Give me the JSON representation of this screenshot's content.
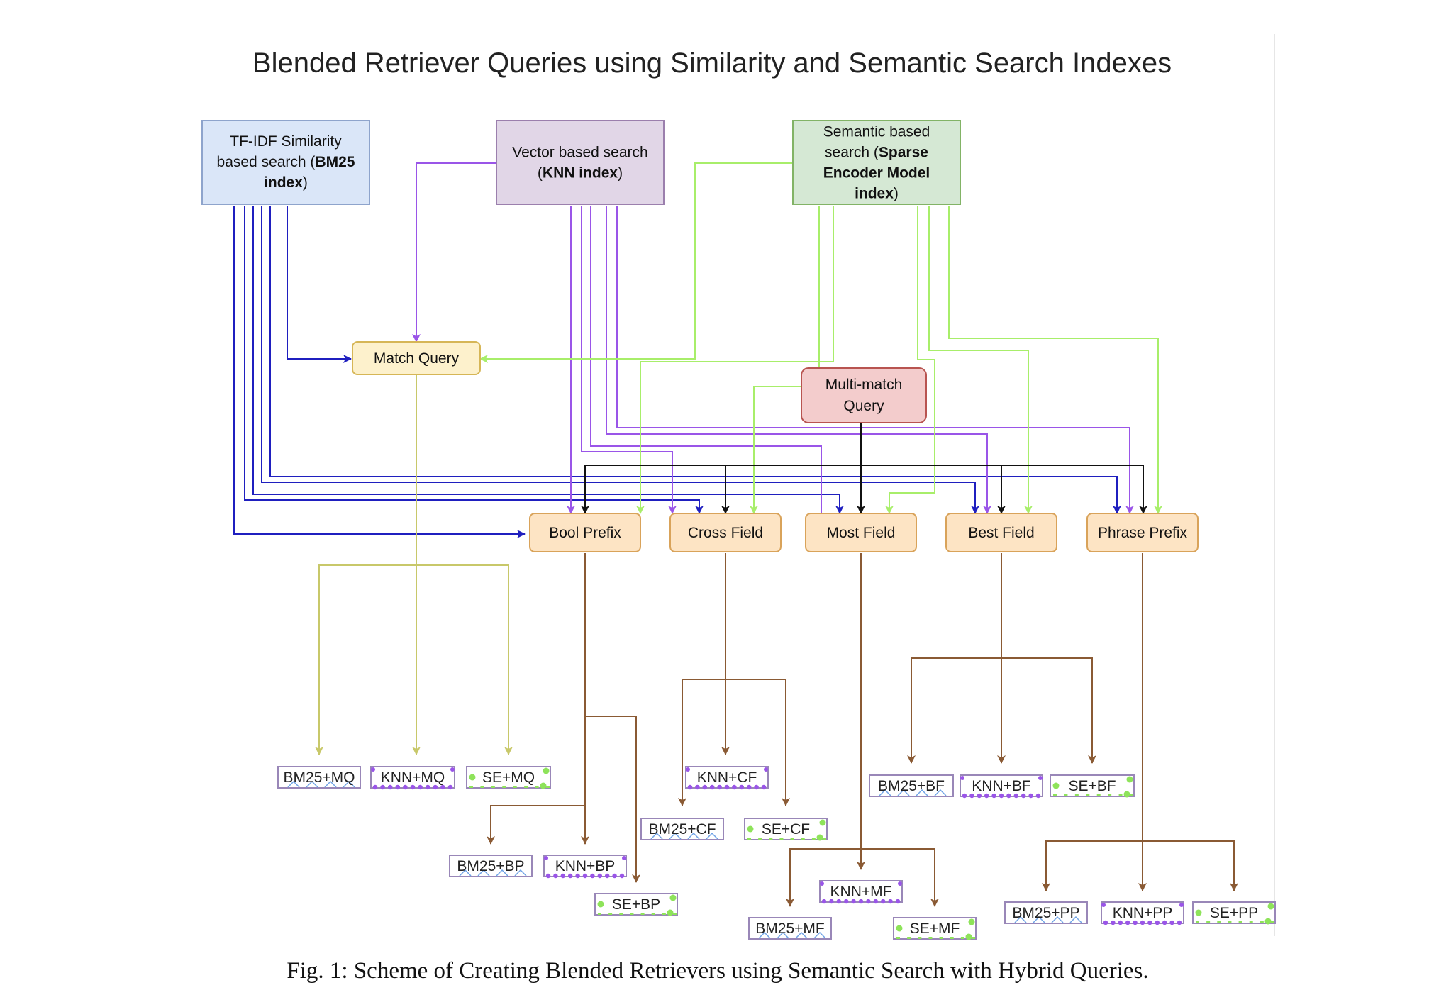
{
  "title": "Blended Retriever Queries using Similarity and Semantic Search Indexes",
  "caption": "Fig. 1: Scheme of Creating Blended Retrievers using Semantic Search with Hybrid Queries.",
  "colors": {
    "bm25_edge": "#1f1fbf",
    "knn_edge": "#9a55e8",
    "se_edge": "#a8ee6a",
    "multimatch_edge": "#111111",
    "query_edge": "#8a5a34",
    "match_edge": "#c8c86a",
    "bm25_fill": "#dae6f8",
    "bm25_stroke": "#8ea4cc",
    "knn_fill": "#e1d6e7",
    "knn_stroke": "#9b7fad",
    "se_fill": "#d5e8d4",
    "se_stroke": "#82b366",
    "query_fill": "#fde4c4",
    "query_stroke": "#d9a35a",
    "match_fill": "#fdf1cc",
    "match_stroke": "#d6b656",
    "multimatch_fill": "#f3cccc",
    "multimatch_stroke": "#b85450",
    "retriever_stroke": "#9987b8"
  },
  "sources": {
    "bm25": {
      "lines": [
        [
          {
            "t": "TF-IDF Similarity"
          }
        ],
        [
          {
            "t": "based search ("
          },
          {
            "t": "BM25",
            "b": true
          }
        ],
        [
          {
            "t": "index",
            "b": true
          },
          {
            "t": ")"
          }
        ]
      ]
    },
    "knn": {
      "lines": [
        [
          {
            "t": "Vector based search"
          }
        ],
        [
          {
            "t": "("
          },
          {
            "t": "KNN index",
            "b": true
          },
          {
            "t": ")"
          }
        ]
      ]
    },
    "se": {
      "lines": [
        [
          {
            "t": "Semantic based"
          }
        ],
        [
          {
            "t": "search ("
          },
          {
            "t": "Sparse",
            "b": true
          }
        ],
        [
          {
            "t": "Encoder Model",
            "b": true
          }
        ],
        [
          {
            "t": "index",
            "b": true
          },
          {
            "t": ")"
          }
        ]
      ]
    }
  },
  "match_query": "Match Query",
  "multimatch": [
    "Multi-match",
    "Query"
  ],
  "queries": [
    "Bool Prefix",
    "Cross Field",
    "Most Field",
    "Best Field",
    "Phrase Prefix"
  ],
  "retrievers": {
    "MQ": [
      "BM25+MQ",
      "KNN+MQ",
      "SE+MQ"
    ],
    "BP": [
      "BM25+BP",
      "KNN+BP",
      "SE+BP"
    ],
    "CF": [
      "BM25+CF",
      "KNN+CF",
      "SE+CF"
    ],
    "MF": [
      "BM25+MF",
      "KNN+MF",
      "SE+MF"
    ],
    "BF": [
      "BM25+BF",
      "KNN+BF",
      "SE+BF"
    ],
    "PP": [
      "BM25+PP",
      "KNN+PP",
      "SE+PP"
    ]
  }
}
